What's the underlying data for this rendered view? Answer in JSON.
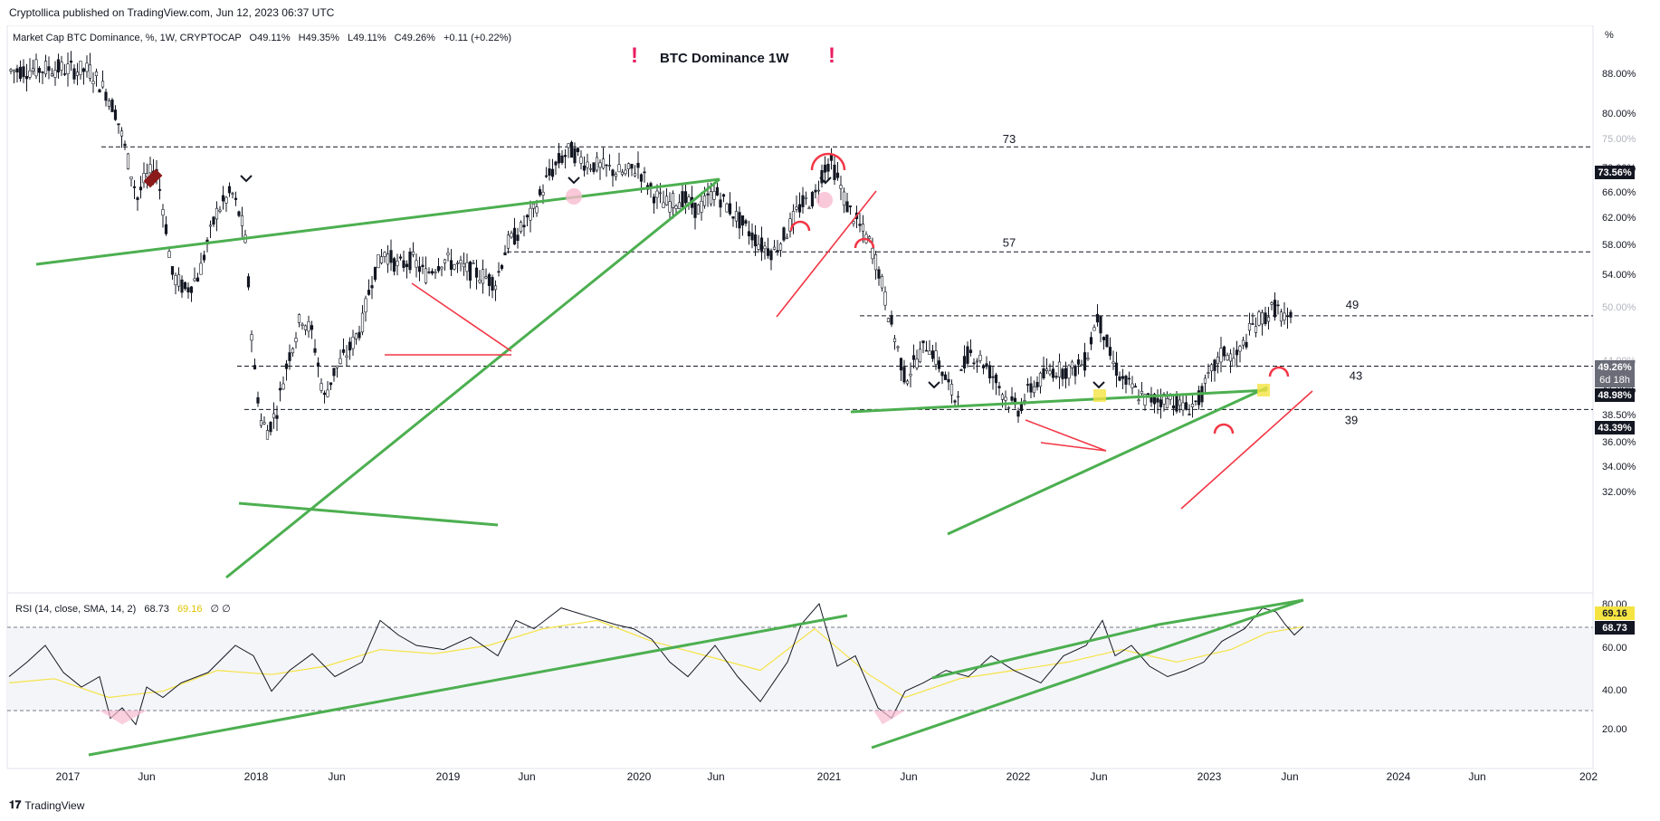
{
  "header": {
    "published": "Cryptollica published on TradingView.com, Jun 12, 2023 06:37 UTC"
  },
  "symbol_line": {
    "name": "Market Cap BTC Dominance, %, 1W, CRYPTOCAP",
    "open": "O49.11%",
    "high": "H49.35%",
    "low": "L49.11%",
    "close": "C49.26%",
    "change": "+0.11 (+0.22%)"
  },
  "title": "BTC Dominance 1W",
  "price_axis": {
    "unit": "%",
    "ticks": [
      "88.00%",
      "80.00%",
      "75.00%",
      "70.00%",
      "66.00%",
      "62.00%",
      "58.00%",
      "54.00%",
      "50.00%",
      "44.00%",
      "41.00%",
      "38.50%",
      "36.00%",
      "34.00%",
      "32.00%"
    ],
    "current_price": "49.26%",
    "countdown": "6d 18h",
    "badge_prev": "48.98%",
    "badge_73": "73.56%",
    "badge_43": "43.39%"
  },
  "level_labels": [
    "73",
    "57",
    "49",
    "43",
    "39"
  ],
  "rsi": {
    "legend": "RSI (14, close, SMA, 14, 2)",
    "value": "68.73",
    "sma_value": "69.16",
    "extra": "∅ ∅",
    "ticks": [
      "80.00",
      "60.00",
      "40.00",
      "20.00"
    ],
    "badge_sma": "69.16",
    "badge_rsi": "68.73"
  },
  "time_axis": [
    "2017",
    "Jun",
    "2018",
    "Jun",
    "2019",
    "Jun",
    "2020",
    "Jun",
    "2021",
    "Jun",
    "2022",
    "Jun",
    "2023",
    "Jun",
    "2024",
    "Jun",
    "202"
  ],
  "footer": {
    "brand": "TradingView"
  },
  "colors": {
    "trend_green": "#4caf50",
    "trend_red": "#f23645",
    "marker_pink": "#e91e63",
    "rsi_line": "#131722",
    "rsi_sma": "#f5e342",
    "price_badge": "#131722"
  },
  "chart_data": {
    "type": "line",
    "title": "BTC Dominance 1W",
    "ylabel": "%",
    "ylim": [
      32,
      90
    ],
    "x": [
      "2017",
      "Jun",
      "2018",
      "Jun",
      "2019",
      "Jun",
      "2020",
      "Jun",
      "2021",
      "Jun",
      "2022",
      "Jun",
      "2023",
      "Jun"
    ],
    "series": [
      {
        "name": "Market Cap BTC Dominance",
        "values": [
          86,
          47,
          36,
          45,
          55,
          72,
          67,
          60,
          70,
          42,
          40,
          47,
          44,
          49.26
        ]
      },
      {
        "name": "RSI (14, close, SMA, 14, 2)",
        "values": [
          45,
          25,
          48,
          45,
          53,
          72,
          58,
          42,
          72,
          25,
          37,
          70,
          45,
          68.73
        ]
      }
    ],
    "horizontal_levels": [
      73.56,
      57,
      49,
      43.39,
      39
    ]
  }
}
